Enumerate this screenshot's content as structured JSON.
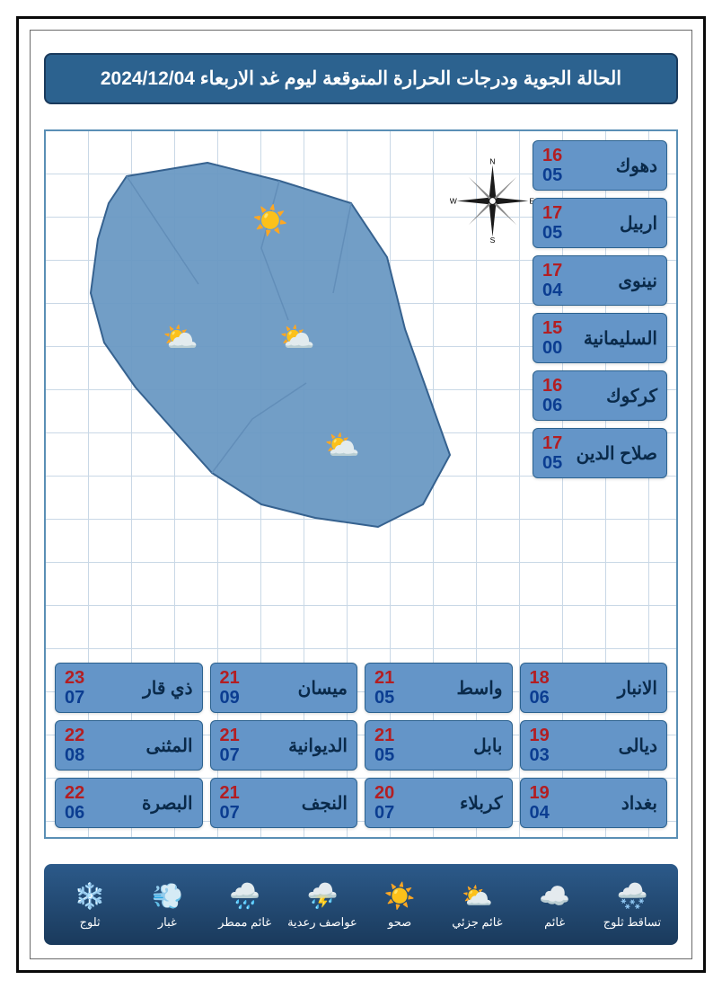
{
  "header": {
    "title": "الحالة الجوية ودرجات الحرارة المتوقعة ليوم غد الاربعاء 2024/12/04"
  },
  "colors": {
    "header_bg": "#2c628f",
    "cell_bg": "#6495c8",
    "temp_high": "#b31e22",
    "temp_low": "#0b3d91",
    "grid_line": "#c9d8e6",
    "map_fill": "#6b99c4",
    "legend_bg": "#1a3a5c"
  },
  "side_cities": [
    {
      "name": "دهوك",
      "high": "16",
      "low": "05"
    },
    {
      "name": "اربيل",
      "high": "17",
      "low": "05"
    },
    {
      "name": "نينوى",
      "high": "17",
      "low": "04"
    },
    {
      "name": "السليمانية",
      "high": "15",
      "low": "00"
    },
    {
      "name": "كركوك",
      "high": "16",
      "low": "06"
    },
    {
      "name": "صلاح الدين",
      "high": "17",
      "low": "05"
    }
  ],
  "grid_rows": [
    [
      {
        "name": "الانبار",
        "high": "18",
        "low": "06"
      },
      {
        "name": "واسط",
        "high": "21",
        "low": "05"
      },
      {
        "name": "ميسان",
        "high": "21",
        "low": "09"
      },
      {
        "name": "ذي قار",
        "high": "23",
        "low": "07"
      }
    ],
    [
      {
        "name": "ديالى",
        "high": "19",
        "low": "03"
      },
      {
        "name": "بابل",
        "high": "21",
        "low": "05"
      },
      {
        "name": "الديوانية",
        "high": "21",
        "low": "07"
      },
      {
        "name": "المثنى",
        "high": "22",
        "low": "08"
      }
    ],
    [
      {
        "name": "بغداد",
        "high": "19",
        "low": "04"
      },
      {
        "name": "كربلاء",
        "high": "20",
        "low": "07"
      },
      {
        "name": "النجف",
        "high": "21",
        "low": "07"
      },
      {
        "name": "البصرة",
        "high": "22",
        "low": "06"
      }
    ]
  ],
  "compass": {
    "n": "N",
    "s": "S",
    "e": "E",
    "w": "W"
  },
  "legend": [
    {
      "label": "تساقط ثلوج",
      "icon": "cloud-snow"
    },
    {
      "label": "غائم",
      "icon": "cloudy"
    },
    {
      "label": "غائم جزئي",
      "icon": "partly"
    },
    {
      "label": "صحو",
      "icon": "sun"
    },
    {
      "label": "عواصف رعدية",
      "icon": "storm"
    },
    {
      "label": "غائم ممطر",
      "icon": "rain"
    },
    {
      "label": "غبار",
      "icon": "dust"
    },
    {
      "label": "ثلوج",
      "icon": "snow"
    }
  ]
}
